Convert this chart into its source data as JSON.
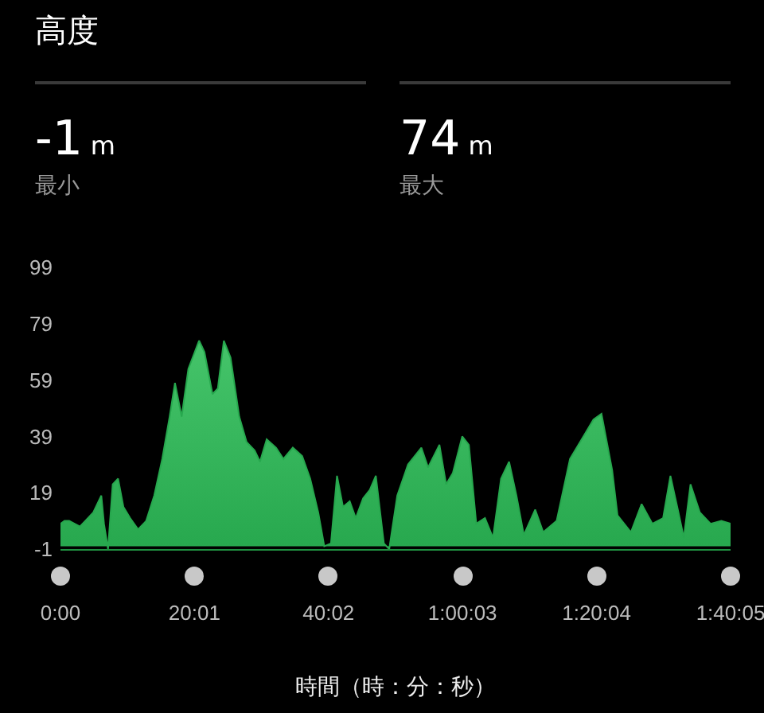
{
  "chart_data": {
    "type": "area",
    "title": "高度",
    "annotations": [
      "-1 m",
      "最小",
      "74 m",
      "最大"
    ],
    "xlabel": "時間（時：分：秒）",
    "x": [
      0,
      0.6,
      1.3,
      2.1,
      2.9,
      3.7,
      4.9,
      6.1,
      6.5,
      7.1,
      7.8,
      8.6,
      9.4,
      10.4,
      11.6,
      12.8,
      14.0,
      15.2,
      16.3,
      17.1,
      18.1,
      19.1,
      19.9,
      20.7,
      21.5,
      22.7,
      23.5,
      24.4,
      25.4,
      26.7,
      27.8,
      29.0,
      29.8,
      30.8,
      32.2,
      33.3,
      34.7,
      36.1,
      37.3,
      38.5,
      39.4,
      40.4,
      41.3,
      42.2,
      43.2,
      44.1,
      45.2,
      46.2,
      47.1,
      48.3,
      49.1,
      50.3,
      51.9,
      53.9,
      54.9,
      56.6,
      57.6,
      58.6,
      60.0,
      61.0,
      62.1,
      63.4,
      64.6,
      65.8,
      67.0,
      68.1,
      69.2,
      70.9,
      72.1,
      74.1,
      76.1,
      78.1,
      79.6,
      80.8,
      82.4,
      83.2,
      85.2,
      86.8,
      88.4,
      90.0,
      91.1,
      92.3,
      93.1,
      94.1,
      95.5,
      97.1,
      98.7,
      100.083
    ],
    "series": [
      {
        "color": "#27a84e",
        "values": [
          8,
          9,
          9,
          8,
          7,
          9,
          12,
          18,
          8,
          -1,
          22,
          24,
          14,
          10,
          6,
          9,
          18,
          31,
          46,
          58,
          46,
          63,
          68,
          73,
          69,
          54,
          56,
          73,
          67,
          46,
          37,
          34,
          30,
          38,
          35,
          31,
          35,
          32,
          24,
          12,
          0,
          1,
          25,
          14,
          16,
          10,
          17,
          20,
          25,
          1,
          -1,
          18,
          29,
          35,
          28,
          36,
          22,
          26,
          39,
          36,
          8,
          10,
          3,
          24,
          30,
          18,
          4,
          13,
          5,
          9,
          31,
          39,
          45,
          47,
          27,
          11,
          5,
          15,
          8,
          10,
          25,
          12,
          3,
          22,
          12,
          8,
          9,
          8
        ]
      }
    ],
    "ylim": [
      -1,
      99
    ],
    "yticks": [
      -1,
      19,
      39,
      59,
      79,
      99
    ],
    "xlim": [
      0,
      100.083
    ],
    "xticks": [
      {
        "value": 0,
        "label": "0:00"
      },
      {
        "value": 20.017,
        "label": "20:01"
      },
      {
        "value": 40.033,
        "label": "40:02"
      },
      {
        "value": 60.05,
        "label": "1:00:03"
      },
      {
        "value": 80.067,
        "label": "1:20:04"
      },
      {
        "value": 100.083,
        "label": "1:40:05"
      }
    ],
    "grid": false
  }
}
